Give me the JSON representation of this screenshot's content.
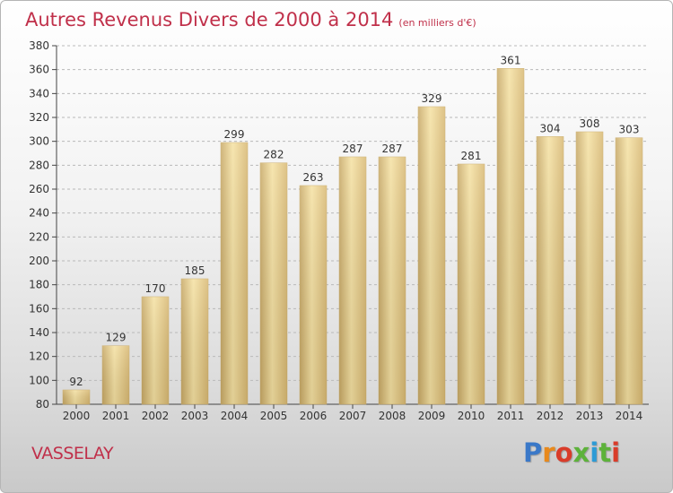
{
  "title": "Autres Revenus Divers de 2000 à 2014",
  "title_unit": "(en milliers d'€)",
  "commune": "VASSELAY",
  "logo": {
    "letters": [
      "P",
      "r",
      "o",
      "x",
      "i",
      "t",
      "i"
    ],
    "colors": [
      "#3a78c8",
      "#e8891c",
      "#d93c2a",
      "#5db23a",
      "#2c9bd6",
      "#5db23a",
      "#d93c2a"
    ]
  },
  "colors": {
    "bar": "#e6ca80",
    "bar_light": "#f5e1a2",
    "bar_dark": "#c8a966",
    "title": "#c0304a",
    "grid": "#b9b9b9"
  },
  "chart_data": {
    "type": "bar",
    "categories": [
      "2000",
      "2001",
      "2002",
      "2003",
      "2004",
      "2005",
      "2006",
      "2007",
      "2008",
      "2009",
      "2010",
      "2011",
      "2012",
      "2013",
      "2014"
    ],
    "values": [
      92,
      129,
      170,
      185,
      299,
      282,
      263,
      287,
      287,
      329,
      281,
      361,
      304,
      308,
      303
    ],
    "data_labels": [
      "92",
      "129",
      "170",
      "185",
      "299",
      "282",
      "263",
      "287",
      "287",
      "329",
      "281",
      "361",
      "304",
      "308",
      "303"
    ],
    "yticks": [
      "80",
      "100",
      "120",
      "140",
      "160",
      "180",
      "200",
      "220",
      "240",
      "260",
      "280",
      "300",
      "320",
      "340",
      "360",
      "380"
    ],
    "ylim": [
      80,
      380
    ],
    "grid": true,
    "xlabel": "",
    "ylabel": ""
  }
}
